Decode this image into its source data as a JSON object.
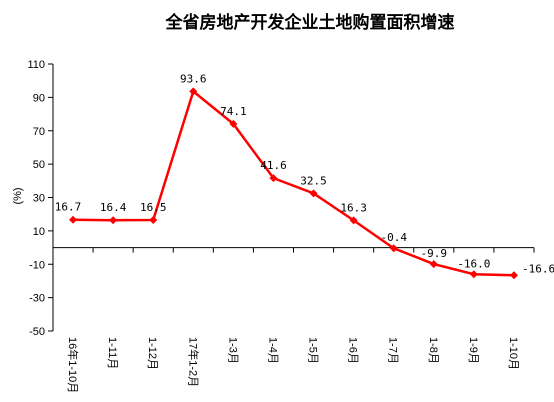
{
  "chart_data": {
    "type": "line",
    "title": "全省房地产开发企业土地购置面积增速",
    "ylabel": "(%)",
    "xlabel": "",
    "ylim": [
      -50,
      110
    ],
    "yticks": [
      110,
      90,
      70,
      50,
      30,
      10,
      -10,
      -30,
      -50
    ],
    "grid": false,
    "legend": "none",
    "categories": [
      "16年1-10月",
      "1-11月",
      "1-12月",
      "17年1-2月",
      "1-3月",
      "1-4月",
      "1-5月",
      "1-6月",
      "1-7月",
      "1-8月",
      "1-9月",
      "1-10月"
    ],
    "series": [
      {
        "values": [
          16.7,
          16.4,
          16.5,
          93.6,
          74.1,
          41.6,
          32.5,
          16.3,
          -0.4,
          -9.9,
          -16.0,
          -16.6
        ],
        "labels": [
          "16.7",
          "16.4",
          "16.5",
          "93.6",
          "74.1",
          "41.6",
          "32.5",
          "16.3",
          "-0.4",
          "-9.9",
          "-16.0",
          "-16.6"
        ],
        "color": "#ff0000"
      }
    ]
  }
}
